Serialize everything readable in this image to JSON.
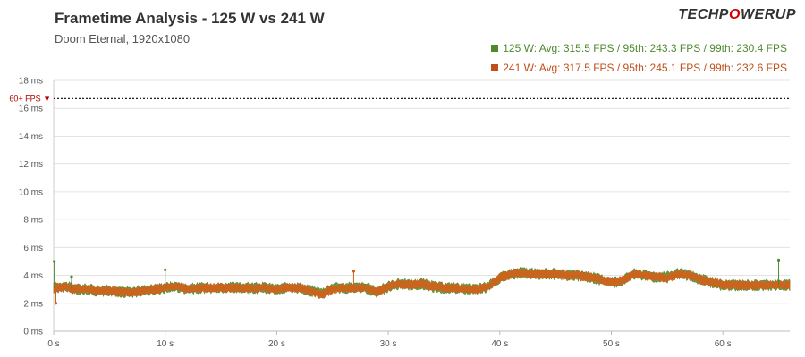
{
  "header": {
    "title": "Frametime Analysis - 125 W vs 241 W",
    "subtitle": "Doom Eternal, 1920x1080",
    "logo_left": "TECHP",
    "logo_mid": "O",
    "logo_right": "WERUP",
    "logo_accent": "#d40000"
  },
  "legend": [
    {
      "label": "125  W: Avg: 315.5  FPS / 95th: 243.3  FPS / 99th: 230.4  FPS",
      "color": "#4e8a2e"
    },
    {
      "label": "241  W: Avg: 317.5  FPS / 95th: 245.1  FPS / 99th: 232.6  FPS",
      "color": "#c0501a"
    }
  ],
  "chart_data": {
    "type": "line",
    "title": "Frametime Analysis - 125 W vs 241 W",
    "subtitle": "Doom Eternal, 1920x1080",
    "xlabel": "",
    "ylabel": "",
    "xlim": [
      0,
      66
    ],
    "ylim": [
      0,
      18
    ],
    "x_ticks": [
      {
        "value": 0,
        "label": "0 s"
      },
      {
        "value": 10,
        "label": "10 s"
      },
      {
        "value": 20,
        "label": "20 s"
      },
      {
        "value": 30,
        "label": "30 s"
      },
      {
        "value": 40,
        "label": "40 s"
      },
      {
        "value": 50,
        "label": "50 s"
      },
      {
        "value": 60,
        "label": "60 s"
      }
    ],
    "y_ticks": [
      {
        "value": 0,
        "label": "0 ms"
      },
      {
        "value": 2,
        "label": "2 ms"
      },
      {
        "value": 4,
        "label": "4 ms"
      },
      {
        "value": 6,
        "label": "6 ms"
      },
      {
        "value": 8,
        "label": "8 ms"
      },
      {
        "value": 10,
        "label": "10 ms"
      },
      {
        "value": 12,
        "label": "12 ms"
      },
      {
        "value": 14,
        "label": "14 ms"
      },
      {
        "value": 16,
        "label": "16 ms"
      },
      {
        "value": 18,
        "label": "18 ms"
      }
    ],
    "reference_line": {
      "value": 16.7,
      "label": "60+ FPS ▼",
      "color": "#000000"
    },
    "grid": "horizontal",
    "legend_position": "top-right",
    "series": [
      {
        "name": "125 W",
        "color": "#4e8a2e",
        "band": 0.3,
        "x": [
          0,
          1,
          2,
          3,
          4,
          5,
          6,
          7,
          8,
          9,
          10,
          11,
          12,
          13,
          14,
          15,
          16,
          17,
          18,
          19,
          20,
          21,
          22,
          23,
          24,
          25,
          26,
          27,
          28,
          29,
          30,
          31,
          32,
          33,
          34,
          35,
          36,
          37,
          38,
          39,
          40,
          41,
          42,
          43,
          44,
          45,
          46,
          47,
          48,
          49,
          50,
          51,
          52,
          53,
          54,
          55,
          56,
          57,
          58,
          59,
          60,
          61,
          62,
          63,
          64,
          65,
          66
        ],
        "y": [
          3.1,
          3.2,
          3.0,
          3.0,
          2.9,
          2.9,
          2.8,
          2.8,
          2.9,
          3.0,
          3.1,
          3.2,
          3.0,
          3.1,
          3.1,
          3.1,
          3.1,
          3.1,
          3.1,
          3.1,
          3.0,
          3.1,
          3.1,
          2.9,
          2.7,
          3.1,
          3.1,
          3.1,
          3.1,
          2.8,
          3.2,
          3.4,
          3.3,
          3.4,
          3.2,
          3.1,
          3.1,
          3.0,
          3.0,
          3.2,
          3.8,
          4.1,
          4.2,
          4.1,
          4.1,
          4.1,
          4.0,
          4.0,
          3.9,
          3.7,
          3.5,
          3.6,
          4.1,
          4.0,
          3.9,
          3.9,
          4.1,
          4.0,
          3.7,
          3.5,
          3.3,
          3.3,
          3.3,
          3.3,
          3.3,
          3.3,
          3.3
        ]
      },
      {
        "name": "241 W",
        "color": "#d2601a",
        "band": 0.25,
        "x": [
          0,
          1,
          2,
          3,
          4,
          5,
          6,
          7,
          8,
          9,
          10,
          11,
          12,
          13,
          14,
          15,
          16,
          17,
          18,
          19,
          20,
          21,
          22,
          23,
          24,
          25,
          26,
          27,
          28,
          29,
          30,
          31,
          32,
          33,
          34,
          35,
          36,
          37,
          38,
          39,
          40,
          41,
          42,
          43,
          44,
          45,
          46,
          47,
          48,
          49,
          50,
          51,
          52,
          53,
          54,
          55,
          56,
          57,
          58,
          59,
          60,
          61,
          62,
          63,
          64,
          65,
          66
        ],
        "y": [
          3.1,
          3.2,
          3.0,
          3.0,
          2.9,
          2.9,
          2.8,
          2.8,
          2.9,
          3.0,
          3.1,
          3.2,
          3.0,
          3.1,
          3.1,
          3.1,
          3.1,
          3.1,
          3.1,
          3.1,
          3.0,
          3.1,
          3.1,
          2.9,
          2.6,
          3.0,
          3.1,
          3.1,
          3.1,
          2.8,
          3.2,
          3.4,
          3.3,
          3.4,
          3.2,
          3.1,
          3.1,
          3.0,
          3.0,
          3.2,
          3.8,
          4.1,
          4.2,
          4.1,
          4.1,
          4.1,
          4.0,
          4.0,
          3.9,
          3.7,
          3.5,
          3.6,
          4.1,
          4.0,
          3.9,
          3.8,
          4.1,
          4.0,
          3.7,
          3.5,
          3.3,
          3.3,
          3.3,
          3.3,
          3.3,
          3.3,
          3.3
        ]
      }
    ],
    "spikes": [
      {
        "x": 0.05,
        "y": 5.0,
        "series": "125 W"
      },
      {
        "x": 0.2,
        "y": 2.0,
        "series": "241 W"
      },
      {
        "x": 1.6,
        "y": 3.9,
        "series": "125 W"
      },
      {
        "x": 10.0,
        "y": 4.4,
        "series": "125 W"
      },
      {
        "x": 26.9,
        "y": 4.3,
        "series": "241 W"
      },
      {
        "x": 65.0,
        "y": 5.1,
        "series": "125 W"
      }
    ]
  }
}
